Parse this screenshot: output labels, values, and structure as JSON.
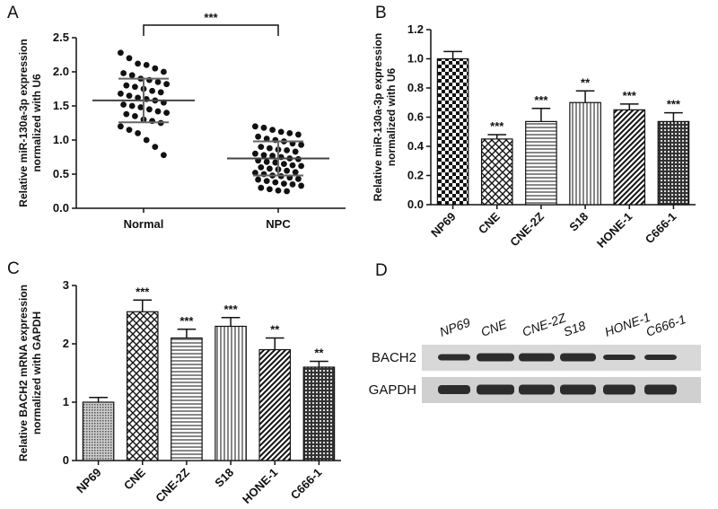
{
  "chart_data": [
    {
      "type": "dotplot",
      "panel": "A",
      "ylabel": [
        "Relative miR-130a-3p expression",
        "normalized with U6"
      ],
      "categories": [
        "Normal",
        "NPC"
      ],
      "values": [
        [
          2.28,
          2.2,
          2.12,
          2.1,
          2.05,
          2.0,
          1.98,
          1.95,
          1.9,
          1.88,
          1.85,
          1.82,
          1.8,
          1.78,
          1.75,
          1.72,
          1.7,
          1.68,
          1.65,
          1.62,
          1.6,
          1.58,
          1.55,
          1.52,
          1.5,
          1.48,
          1.45,
          1.42,
          1.4,
          1.38,
          1.35,
          1.3,
          1.28,
          1.25,
          1.2,
          1.15,
          1.1,
          1.0,
          0.9,
          0.78
        ],
        [
          1.2,
          1.18,
          1.15,
          1.12,
          1.1,
          1.08,
          1.05,
          1.02,
          1.0,
          0.98,
          0.95,
          0.93,
          0.9,
          0.88,
          0.86,
          0.85,
          0.83,
          0.8,
          0.78,
          0.77,
          0.75,
          0.73,
          0.72,
          0.7,
          0.68,
          0.67,
          0.65,
          0.63,
          0.62,
          0.6,
          0.58,
          0.57,
          0.55,
          0.53,
          0.52,
          0.5,
          0.48,
          0.47,
          0.45,
          0.43,
          0.42,
          0.4,
          0.38,
          0.36,
          0.35,
          0.33,
          0.3,
          0.28,
          0.26,
          0.25
        ]
      ],
      "mean": [
        1.58,
        0.73
      ],
      "sd": [
        0.32,
        0.25
      ],
      "annotation": "***",
      "color": "#111111",
      "ylim": [
        0,
        2.5
      ],
      "yticks": [
        {
          "value": 0,
          "label": "0.0"
        },
        0.5,
        {
          "value": 1,
          "label": "1.0"
        },
        1.5,
        {
          "value": 2,
          "label": "2.0"
        },
        2.5
      ]
    },
    {
      "type": "bar",
      "panel": "B",
      "ylabel": [
        "Relative miR-130a-3p expression",
        "normalized with U6"
      ],
      "categories": [
        "NP69",
        "CNE",
        "CNE-2Z",
        "S18",
        "HONE-1",
        "C666-1"
      ],
      "values": [
        1.0,
        0.45,
        0.57,
        0.7,
        0.65,
        0.57
      ],
      "errors": [
        0.05,
        0.03,
        0.09,
        0.08,
        0.04,
        0.06
      ],
      "significance": [
        null,
        "***",
        "***",
        "**",
        "***",
        "***"
      ],
      "patterns": [
        "checker",
        "diamond",
        "hlines",
        "vlines",
        "diag",
        "dense"
      ],
      "ylim": [
        0,
        1.2
      ],
      "yticks": [
        {
          "value": 0,
          "label": "0.0"
        },
        0.2,
        0.4,
        0.6,
        0.8,
        {
          "value": 1,
          "label": "1.0"
        },
        1.2
      ]
    },
    {
      "type": "bar",
      "panel": "C",
      "ylabel": [
        "Relative BACH2 mRNA expression",
        "normalized with GAPDH"
      ],
      "categories": [
        "NP69",
        "CNE",
        "CNE-2Z",
        "S18",
        "HONE-1",
        "C666-1"
      ],
      "values": [
        1.0,
        2.55,
        2.1,
        2.3,
        1.9,
        1.6
      ],
      "errors": [
        0.08,
        0.2,
        0.15,
        0.15,
        0.2,
        0.1
      ],
      "significance": [
        null,
        "***",
        "***",
        "***",
        "**",
        "**"
      ],
      "patterns": [
        "fine",
        "diamond",
        "hlines",
        "vlines",
        "diag",
        "dense"
      ],
      "ylim": [
        0,
        3
      ],
      "yticks": [
        0,
        1,
        2,
        3
      ]
    }
  ],
  "blot": {
    "panel": "D",
    "lanes": [
      "NP69",
      "CNE",
      "CNE-2Z",
      "S18",
      "HONE-1",
      "C666-1"
    ],
    "rows": [
      "BACH2",
      "GAPDH"
    ]
  }
}
